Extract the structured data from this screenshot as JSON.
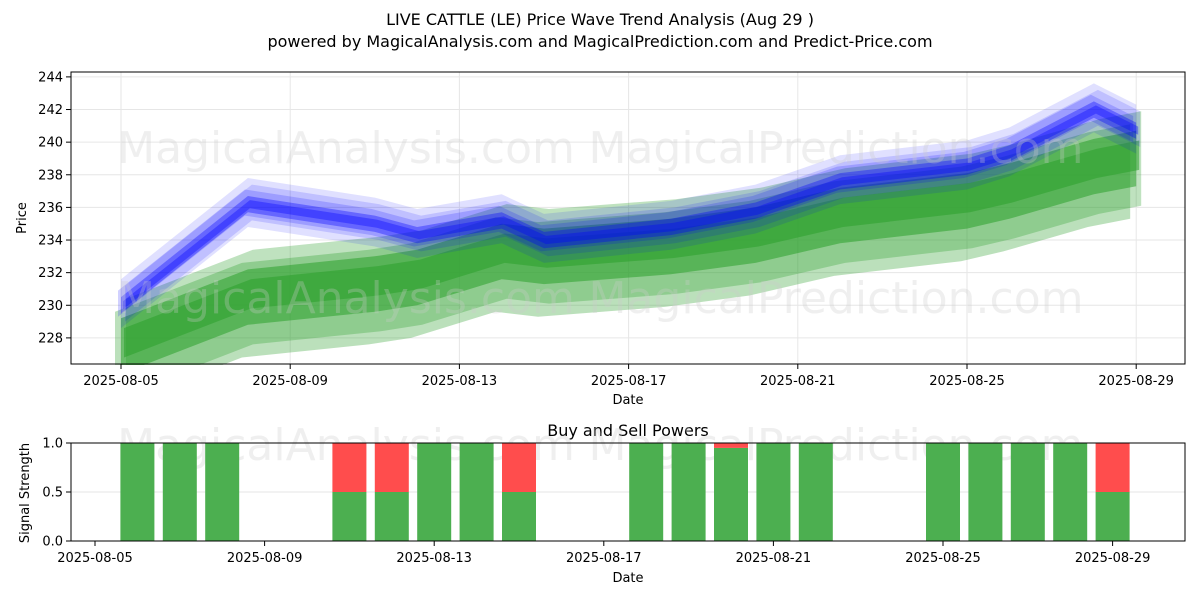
{
  "title_line1": "LIVE CATTLE (LE) Price Wave Trend Analysis (Aug 29 )",
  "title_line2": "powered by MagicalAnalysis.com and MagicalPrediction.com and Predict-Price.com",
  "watermarks": [
    "MagicalAnalysis.com",
    "MagicalPrediction.com"
  ],
  "colors": {
    "blue": "#0000ff",
    "green": "#2ca02c",
    "buy": "#4caf50",
    "sell": "#ff4d4d"
  },
  "chart_data": [
    {
      "type": "area",
      "xlabel": "Date",
      "ylabel": "Price",
      "ylim": [
        226.4,
        244.3
      ],
      "yticks": [
        228,
        230,
        232,
        234,
        236,
        238,
        240,
        242,
        244
      ],
      "xticks": [
        "2025-08-05",
        "2025-08-09",
        "2025-08-13",
        "2025-08-17",
        "2025-08-21",
        "2025-08-25",
        "2025-08-29"
      ],
      "x": [
        "2025-08-05",
        "2025-08-08",
        "2025-08-11",
        "2025-08-12",
        "2025-08-14",
        "2025-08-15",
        "2025-08-18",
        "2025-08-20",
        "2025-08-22",
        "2025-08-25",
        "2025-08-26",
        "2025-08-28",
        "2025-08-29"
      ],
      "series": [
        {
          "values": [
            230.0,
            236.2,
            235.0,
            234.3,
            235.2,
            234.0,
            234.8,
            235.8,
            237.6,
            238.5,
            239.3,
            242.0,
            240.7
          ]
        },
        {
          "values": [
            227.8,
            230.8,
            231.6,
            232.0,
            233.6,
            233.3,
            233.9,
            234.6,
            235.8,
            236.7,
            237.3,
            238.8,
            239.3
          ]
        }
      ]
    },
    {
      "type": "bar",
      "title": "Buy and Sell Powers",
      "xlabel": "Date",
      "ylabel": "Signal Strength",
      "ylim": [
        0,
        1
      ],
      "yticks": [
        "0.0",
        "0.5",
        "1.0"
      ],
      "xticks": [
        "2025-08-05",
        "2025-08-09",
        "2025-08-13",
        "2025-08-17",
        "2025-08-21",
        "2025-08-25",
        "2025-08-29"
      ],
      "categories": [
        "2025-08-06",
        "2025-08-07",
        "2025-08-08",
        "2025-08-11",
        "2025-08-12",
        "2025-08-13",
        "2025-08-14",
        "2025-08-15",
        "2025-08-18",
        "2025-08-19",
        "2025-08-20",
        "2025-08-21",
        "2025-08-22",
        "2025-08-25",
        "2025-08-26",
        "2025-08-27",
        "2025-08-28",
        "2025-08-29"
      ],
      "series": [
        {
          "name": "Buy",
          "values": [
            1,
            1,
            1,
            0.5,
            0.5,
            1,
            1,
            0.5,
            1,
            1,
            0.95,
            1,
            1,
            1,
            1,
            1,
            1,
            0.5
          ]
        },
        {
          "name": "Sell",
          "values": [
            0,
            0,
            0,
            0.5,
            0.5,
            0,
            0,
            0.5,
            0,
            0,
            0.05,
            0,
            0,
            0,
            0,
            0,
            0,
            0.5
          ]
        }
      ]
    }
  ]
}
